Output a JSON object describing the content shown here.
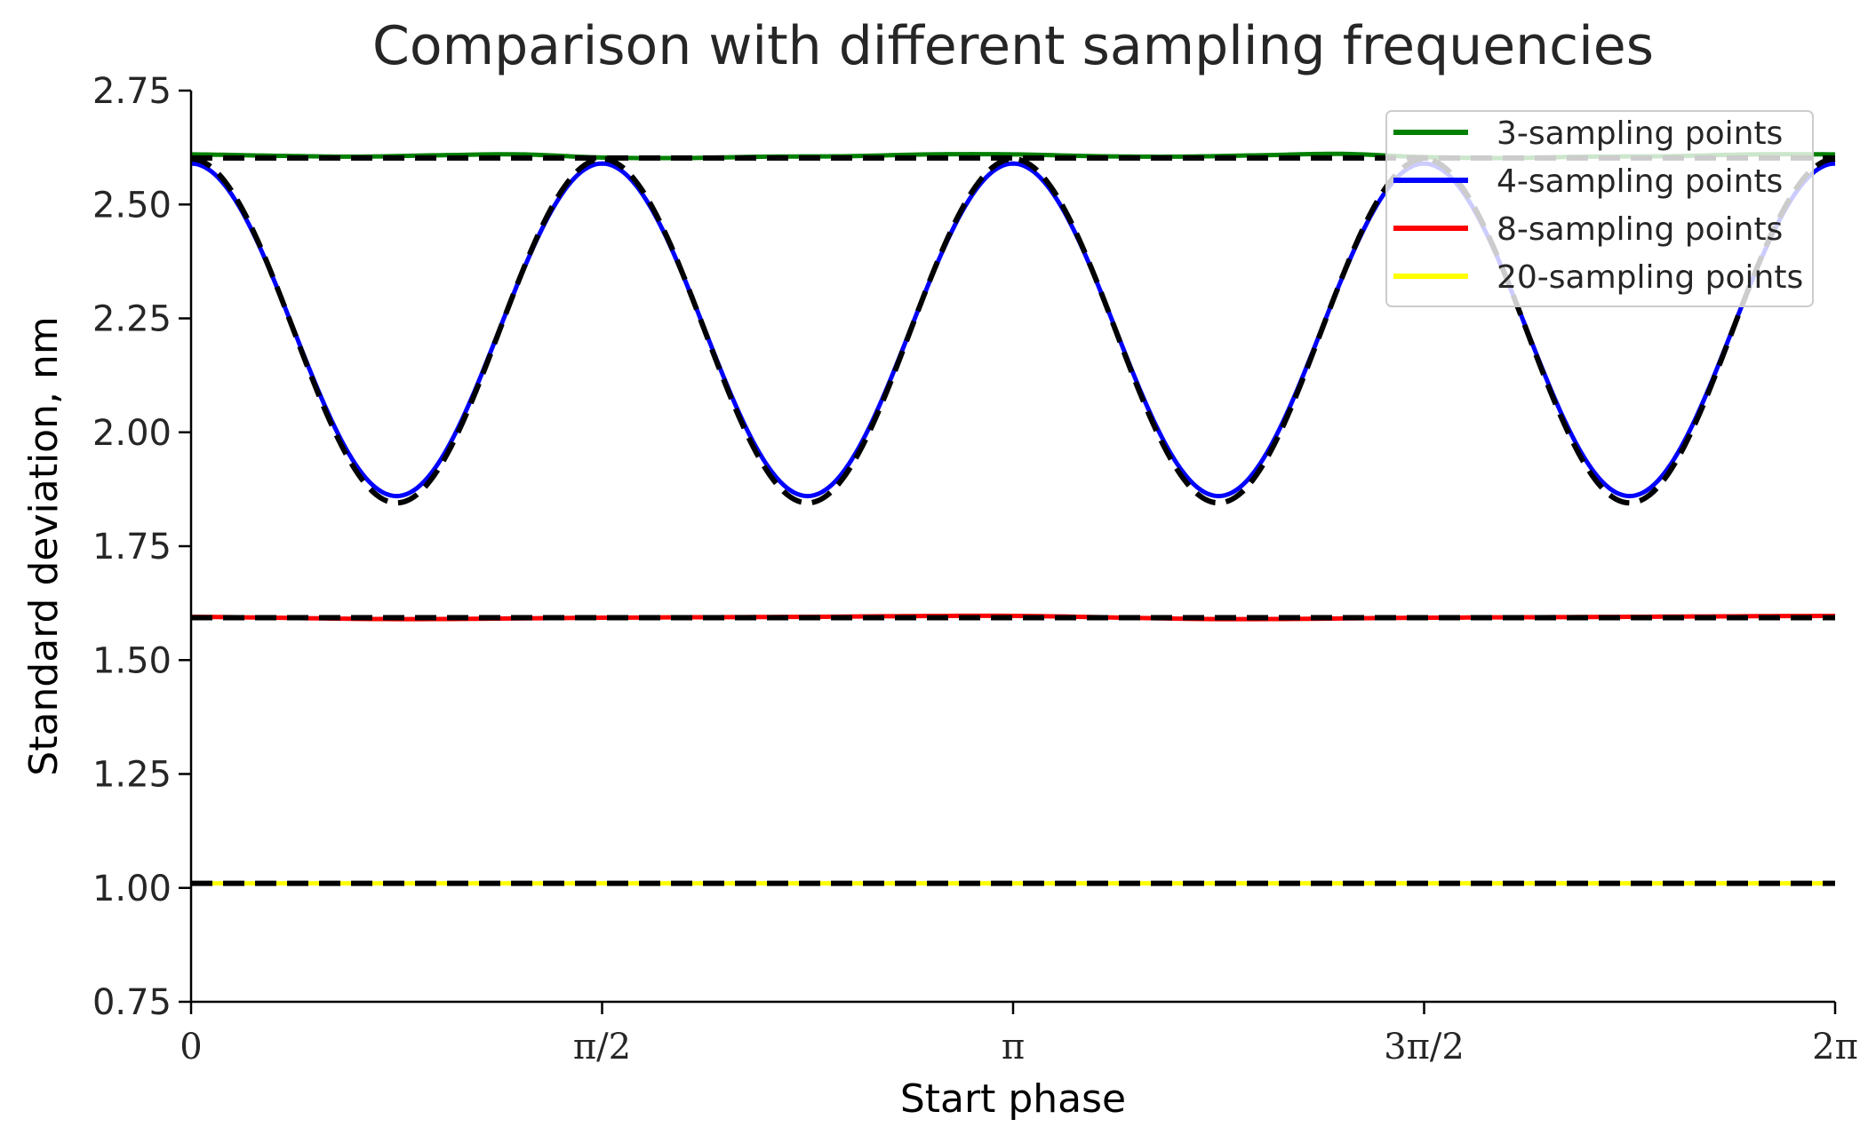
{
  "chart_data": {
    "type": "line",
    "title": "Comparison with different sampling frequencies",
    "xlabel": "Start phase",
    "ylabel": "Standard deviation, nm",
    "xlim": [
      0,
      6.2832
    ],
    "ylim": [
      0.75,
      2.75
    ],
    "xticks": [
      0,
      1.5708,
      3.1416,
      4.7124,
      6.2832
    ],
    "xtick_labels": [
      "0",
      "π/2",
      "π",
      "3π/2",
      "2π"
    ],
    "yticks": [
      0.75,
      1.0,
      1.25,
      1.5,
      1.75,
      2.0,
      2.25,
      2.5,
      2.75
    ],
    "ytick_labels": [
      "0.75",
      "1.00",
      "1.25",
      "1.50",
      "1.75",
      "2.00",
      "2.25",
      "2.50",
      "2.75"
    ],
    "grid": false,
    "legend_position": "top-right",
    "series": [
      {
        "name": "3-sampling points",
        "color": "#008000",
        "x": [
          0,
          0.3142,
          0.6283,
          0.9425,
          1.2566,
          1.5708,
          1.885,
          2.1991,
          2.5133,
          2.8274,
          3.1416,
          3.4558,
          3.7699,
          4.0841,
          4.3982,
          4.7124,
          5.0265,
          5.3407,
          5.6549,
          5.969,
          6.2832
        ],
        "y": [
          2.61,
          2.607,
          2.605,
          2.608,
          2.61,
          2.603,
          2.602,
          2.605,
          2.606,
          2.61,
          2.61,
          2.606,
          2.605,
          2.608,
          2.611,
          2.604,
          2.602,
          2.605,
          2.606,
          2.61,
          2.61
        ]
      },
      {
        "name": "4-sampling points",
        "color": "#0000ff",
        "x": [
          0,
          0.3142,
          0.6283,
          0.9425,
          1.2566,
          1.5708,
          1.885,
          2.1991,
          2.5133,
          2.8274,
          3.1416,
          3.4558,
          3.7699,
          4.0841,
          4.3982,
          4.7124,
          5.0265,
          5.3407,
          5.6549,
          5.969,
          6.2832
        ],
        "y": [
          2.59,
          2.333,
          1.917,
          1.917,
          2.333,
          2.59,
          2.333,
          1.917,
          1.917,
          2.333,
          2.59,
          2.333,
          1.917,
          1.917,
          2.333,
          2.59,
          2.333,
          1.917,
          1.917,
          2.333,
          2.59
        ],
        "y_min": 1.86,
        "y_max": 2.59,
        "periods": 4
      },
      {
        "name": "8-sampling points",
        "color": "#ff0000",
        "x": [
          0,
          0.7854,
          1.5708,
          2.3562,
          3.1416,
          3.927,
          4.7124,
          5.4978,
          6.2832
        ],
        "y": [
          1.595,
          1.59,
          1.593,
          1.595,
          1.597,
          1.59,
          1.593,
          1.595,
          1.597
        ]
      },
      {
        "name": "20-sampling points",
        "color": "#ffff00",
        "x": [
          0,
          6.2832
        ],
        "y": [
          1.01,
          1.01
        ]
      }
    ],
    "reference_curves": {
      "color": "#000000",
      "style": "dashed",
      "curves": [
        {
          "for": "3-sampling points",
          "x": [
            0,
            6.2832
          ],
          "y": [
            2.602,
            2.602
          ]
        },
        {
          "for": "4-sampling points",
          "y_min": 1.845,
          "y_max": 2.6,
          "periods": 4
        },
        {
          "for": "8-sampling points",
          "x": [
            0,
            6.2832
          ],
          "y": [
            1.593,
            1.593
          ]
        },
        {
          "for": "20-sampling points",
          "x": [
            0,
            6.2832
          ],
          "y": [
            1.01,
            1.01
          ]
        }
      ]
    }
  }
}
